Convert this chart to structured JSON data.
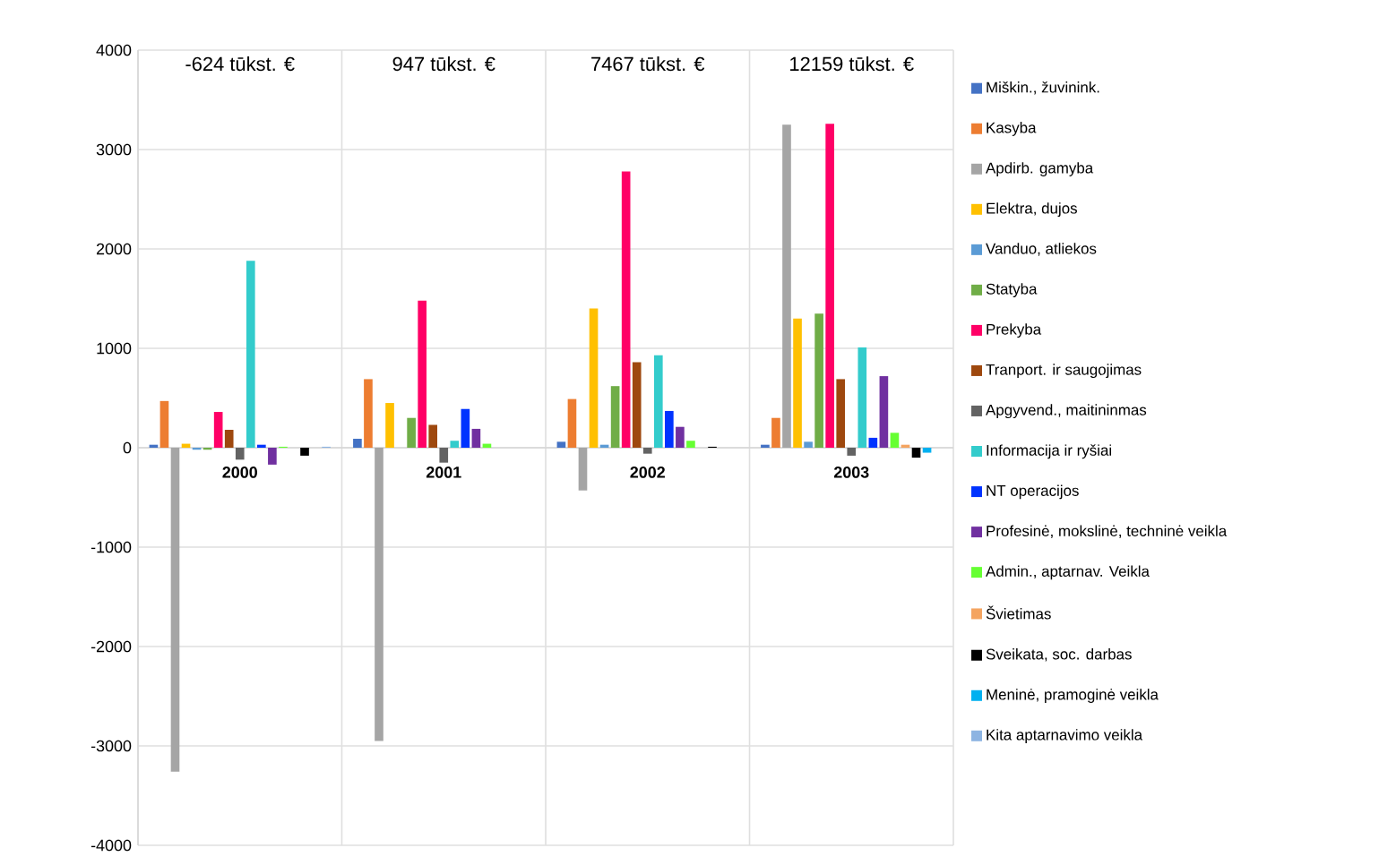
{
  "chart_data": {
    "type": "bar",
    "categories": [
      "2000",
      "2001",
      "2002",
      "2003"
    ],
    "annotations": [
      "-624 tūkst. €",
      "947 tūkst. €",
      "7467 tūkst. €",
      "12159 tūkst. €"
    ],
    "ylim": [
      -4000,
      4000
    ],
    "yticks": [
      -4000,
      -3000,
      -2000,
      -1000,
      0,
      1000,
      2000,
      3000,
      4000
    ],
    "grid": true,
    "legend": "right",
    "series": [
      {
        "name": "Miškin., žuvinink.",
        "color": "#4472c4",
        "values": [
          30,
          90,
          60,
          30
        ]
      },
      {
        "name": "Kasyba",
        "color": "#ed7d31",
        "values": [
          470,
          690,
          490,
          300
        ]
      },
      {
        "name": "Apdirb. gamyba",
        "color": "#a5a5a5",
        "values": [
          -3260,
          -2950,
          -430,
          3250
        ]
      },
      {
        "name": "Elektra, dujos",
        "color": "#ffc000",
        "values": [
          40,
          450,
          1400,
          1300
        ]
      },
      {
        "name": "Vanduo, atliekos",
        "color": "#5b9bd5",
        "values": [
          -20,
          0,
          30,
          60
        ]
      },
      {
        "name": "Statyba",
        "color": "#70ad47",
        "values": [
          -20,
          300,
          620,
          1350
        ]
      },
      {
        "name": "Prekyba",
        "color": "#ff0066",
        "values": [
          360,
          1480,
          2780,
          3260
        ]
      },
      {
        "name": "Tranport. ir saugojimas",
        "color": "#9e480e",
        "values": [
          180,
          230,
          860,
          690
        ]
      },
      {
        "name": "Apgyvend., maitininmas",
        "color": "#636363",
        "values": [
          -120,
          -150,
          -60,
          -80
        ]
      },
      {
        "name": "Informacija ir ryšiai",
        "color": "#33cccc",
        "values": [
          1880,
          70,
          930,
          1010
        ]
      },
      {
        "name": "NT operacijos",
        "color": "#0033ff",
        "values": [
          30,
          390,
          370,
          100
        ]
      },
      {
        "name": "Profesinė, mokslinė, techninė veikla",
        "color": "#7030a0",
        "values": [
          -170,
          190,
          210,
          720
        ]
      },
      {
        "name": "Admin., aptarnav. Veikla",
        "color": "#66ff33",
        "values": [
          10,
          40,
          70,
          150
        ]
      },
      {
        "name": "Švietimas",
        "color": "#f4a460",
        "values": [
          0,
          0,
          0,
          30
        ]
      },
      {
        "name": "Sveikata, soc. darbas",
        "color": "#000000",
        "values": [
          -80,
          0,
          10,
          -100
        ]
      },
      {
        "name": "Meninė, pramoginė veikla",
        "color": "#00b0f0",
        "values": [
          0,
          0,
          0,
          -50
        ]
      },
      {
        "name": "Kita aptarnavimo veikla",
        "color": "#8db4e2",
        "values": [
          10,
          0,
          0,
          0
        ]
      }
    ]
  }
}
